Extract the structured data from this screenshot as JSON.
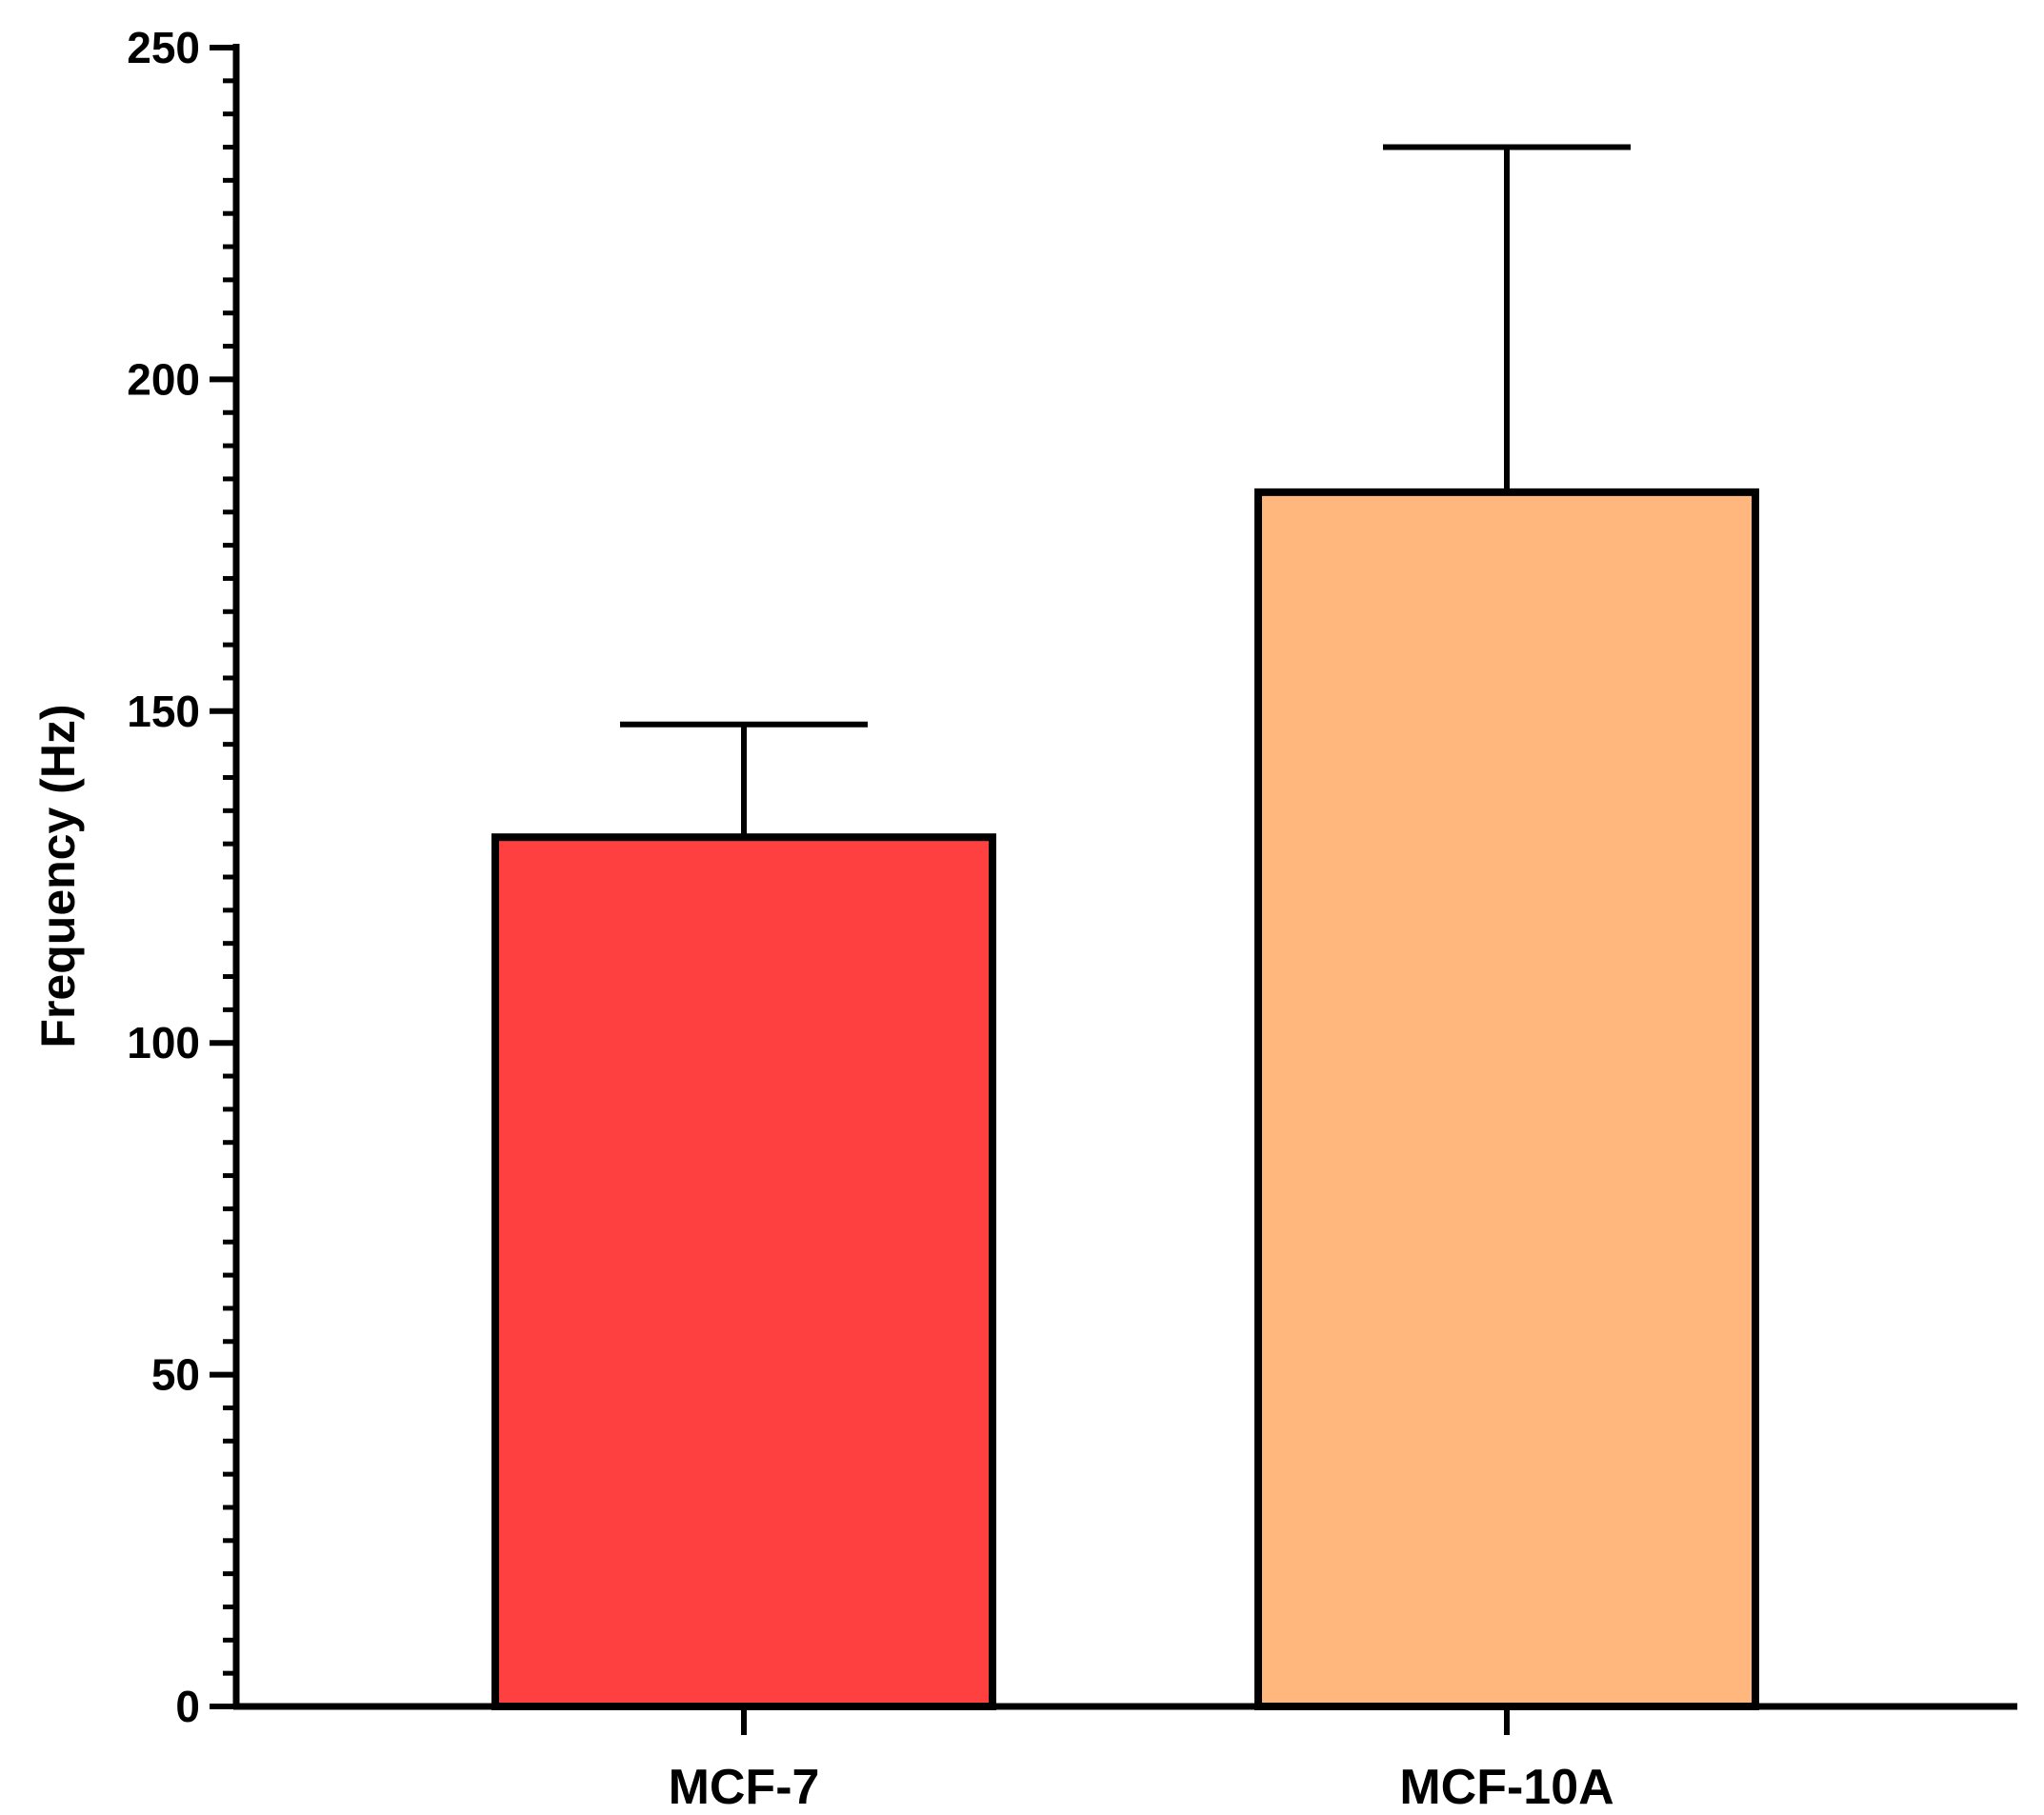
{
  "chart_data": {
    "type": "bar",
    "title": "",
    "xlabel": "",
    "ylabel": "Frequency (Hz)",
    "categories": [
      "MCF-7",
      "MCF-10A"
    ],
    "values": [
      131,
      183
    ],
    "error_bars": [
      17,
      52
    ],
    "ylim": [
      0,
      250
    ],
    "yticks": [
      0,
      50,
      100,
      150,
      200,
      250
    ],
    "ytick_labels": [
      "0",
      "50",
      "100",
      "150",
      "200",
      "250"
    ],
    "minor_ticks_per_major": 10,
    "colors": [
      "#ff4040",
      "#ffb77d"
    ],
    "grid": false,
    "legend": "none"
  }
}
